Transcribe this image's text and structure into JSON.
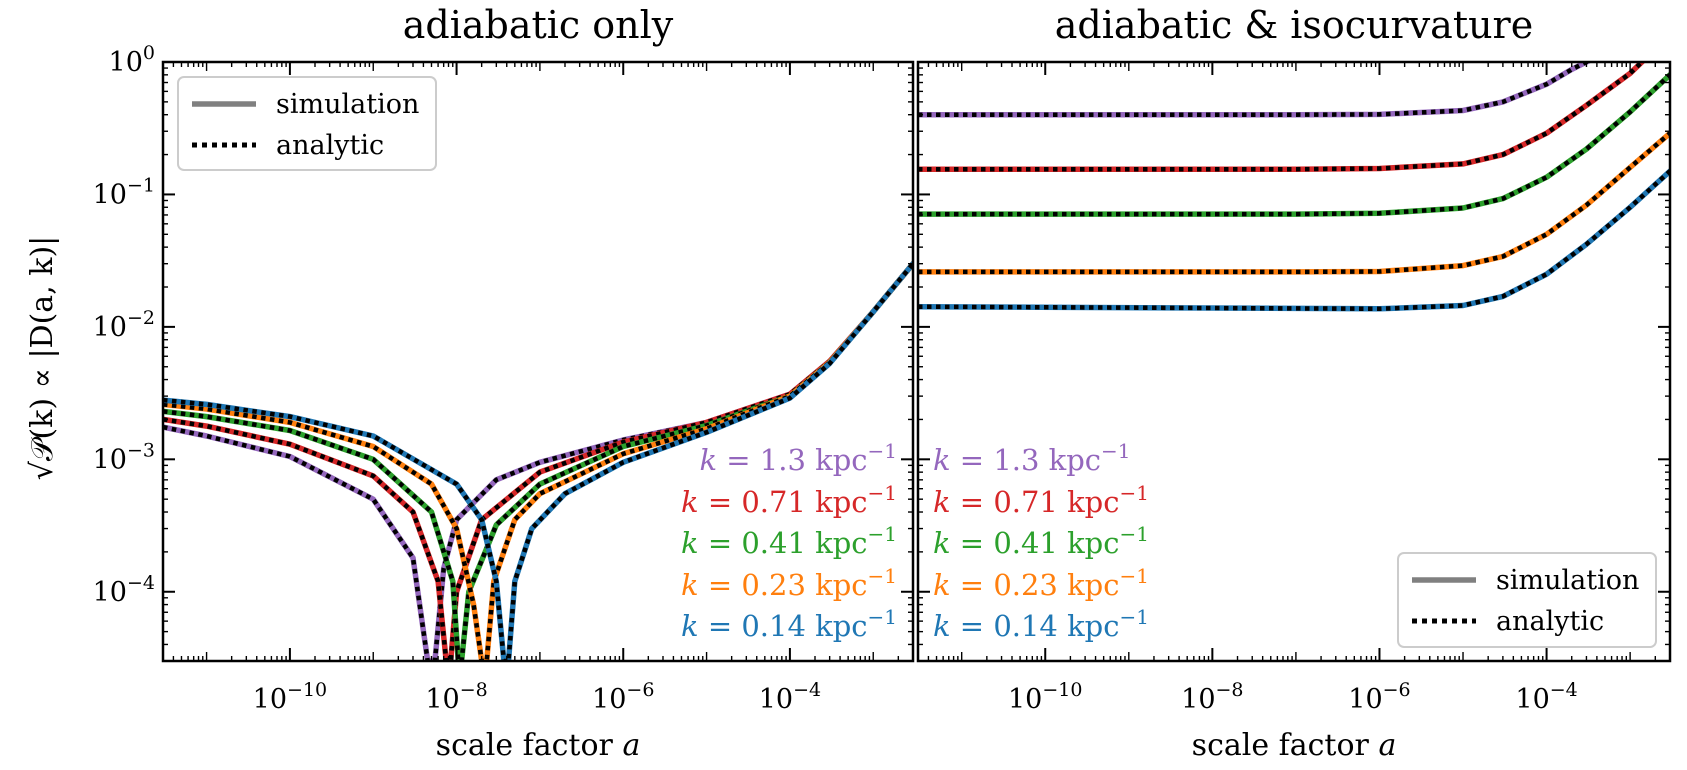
{
  "chart_data": {
    "type": "line",
    "ylabel": "√𝒫(k) ∝ |D(a, k)|",
    "xlabel_prefix": "scale factor ",
    "xlabel_var": "a",
    "xscale": "log",
    "yscale": "log",
    "xlim": [
      3e-12,
      0.003
    ],
    "ylim": [
      3e-05,
      1
    ],
    "x_ticks": [
      {
        "value": 1e-10,
        "base": "10",
        "exp": "−10"
      },
      {
        "value": 1e-08,
        "base": "10",
        "exp": "−8"
      },
      {
        "value": 1e-06,
        "base": "10",
        "exp": "−6"
      },
      {
        "value": 0.0001,
        "base": "10",
        "exp": "−4"
      }
    ],
    "y_ticks": [
      {
        "value": 1,
        "base": "10",
        "exp": "0"
      },
      {
        "value": 0.1,
        "base": "10",
        "exp": "−1"
      },
      {
        "value": 0.01,
        "base": "10",
        "exp": "−2"
      },
      {
        "value": 0.001,
        "base": "10",
        "exp": "−3"
      },
      {
        "value": 0.0001,
        "base": "10",
        "exp": "−4"
      }
    ],
    "legend_entries": [
      "simulation",
      "analytic"
    ],
    "series_meta": [
      {
        "name": "k = 1.3 kpc⁻¹",
        "k_value": "1.3",
        "color": "#9467bd"
      },
      {
        "name": "k = 0.71 kpc⁻¹",
        "k_value": "0.71",
        "color": "#d62728"
      },
      {
        "name": "k = 0.41 kpc⁻¹",
        "k_value": "0.41",
        "color": "#2ca02c"
      },
      {
        "name": "k = 0.23 kpc⁻¹",
        "k_value": "0.23",
        "color": "#ff7f0e"
      },
      {
        "name": "k = 0.14 kpc⁻¹",
        "k_value": "0.14",
        "color": "#1f77b4"
      }
    ],
    "k_unit": "kpc",
    "k_unit_exp": "−1",
    "panels": [
      {
        "title": "adiabatic only",
        "legend_location": "upper left",
        "series": [
          {
            "k": "1.3",
            "points": [
              [
                3e-12,
                0.00175
              ],
              [
                1e-11,
                0.0015
              ],
              [
                1e-10,
                0.00105
              ],
              [
                1e-09,
                0.0005
              ],
              [
                3e-09,
                0.00018
              ],
              [
                4.5e-09,
                3e-05
              ],
              [
                5.5e-09,
                3e-05
              ],
              [
                7e-09,
                0.00015
              ],
              [
                1e-08,
                0.00035
              ],
              [
                3e-08,
                0.0007
              ],
              [
                1e-07,
                0.00095
              ],
              [
                1e-06,
                0.0014
              ],
              [
                1e-05,
                0.0019
              ],
              [
                0.0001,
                0.0031
              ],
              [
                0.0003,
                0.0055
              ],
              [
                0.001,
                0.013
              ],
              [
                0.003,
                0.03
              ]
            ]
          },
          {
            "k": "0.71",
            "points": [
              [
                3e-12,
                0.002
              ],
              [
                1e-11,
                0.00178
              ],
              [
                1e-10,
                0.0013
              ],
              [
                1e-09,
                0.00075
              ],
              [
                3e-09,
                0.0004
              ],
              [
                6e-09,
                0.00012
              ],
              [
                7.5e-09,
                3e-05
              ],
              [
                8.5e-09,
                3e-05
              ],
              [
                1e-08,
                0.0001
              ],
              [
                2e-08,
                0.00035
              ],
              [
                1e-07,
                0.0008
              ],
              [
                1e-06,
                0.00135
              ],
              [
                1e-05,
                0.0019
              ],
              [
                0.0001,
                0.0031
              ],
              [
                0.0003,
                0.0055
              ],
              [
                0.001,
                0.013
              ],
              [
                0.003,
                0.03
              ]
            ]
          },
          {
            "k": "0.41",
            "points": [
              [
                3e-12,
                0.0023
              ],
              [
                1e-11,
                0.0021
              ],
              [
                1e-10,
                0.00165
              ],
              [
                1e-09,
                0.001
              ],
              [
                5e-09,
                0.0004
              ],
              [
                9e-09,
                0.00012
              ],
              [
                1.05e-08,
                3e-05
              ],
              [
                1.15e-08,
                3e-05
              ],
              [
                1.4e-08,
                0.0001
              ],
              [
                3e-08,
                0.00032
              ],
              [
                1e-07,
                0.00065
              ],
              [
                1e-06,
                0.00125
              ],
              [
                1e-05,
                0.0018
              ],
              [
                0.0001,
                0.003
              ],
              [
                0.0003,
                0.0054
              ],
              [
                0.001,
                0.013
              ],
              [
                0.003,
                0.03
              ]
            ]
          },
          {
            "k": "0.23",
            "points": [
              [
                3e-12,
                0.0026
              ],
              [
                1e-11,
                0.0024
              ],
              [
                1e-10,
                0.0019
              ],
              [
                1e-09,
                0.00125
              ],
              [
                5e-09,
                0.00065
              ],
              [
                1e-08,
                0.0003
              ],
              [
                1.6e-08,
                8e-05
              ],
              [
                2e-08,
                3e-05
              ],
              [
                2.3e-08,
                3e-05
              ],
              [
                2.8e-08,
                0.00012
              ],
              [
                5e-08,
                0.00035
              ],
              [
                1e-07,
                0.00055
              ],
              [
                1e-06,
                0.0011
              ],
              [
                1e-05,
                0.0017
              ],
              [
                0.0001,
                0.003
              ],
              [
                0.0003,
                0.0054
              ],
              [
                0.001,
                0.013
              ],
              [
                0.003,
                0.03
              ]
            ]
          },
          {
            "k": "0.14",
            "points": [
              [
                3e-12,
                0.0028
              ],
              [
                1e-11,
                0.0026
              ],
              [
                1e-10,
                0.0021
              ],
              [
                1e-09,
                0.0015
              ],
              [
                1e-08,
                0.00065
              ],
              [
                2e-08,
                0.00035
              ],
              [
                3e-08,
                0.00012
              ],
              [
                3.7e-08,
                3e-05
              ],
              [
                4.2e-08,
                3e-05
              ],
              [
                5e-08,
                0.00012
              ],
              [
                8e-08,
                0.0003
              ],
              [
                2e-07,
                0.00055
              ],
              [
                1e-06,
                0.00095
              ],
              [
                1e-05,
                0.0016
              ],
              [
                0.0001,
                0.0029
              ],
              [
                0.0003,
                0.0053
              ],
              [
                0.001,
                0.013
              ],
              [
                0.003,
                0.03
              ]
            ]
          }
        ]
      },
      {
        "title": "adiabatic & isocurvature",
        "legend_location": "lower right",
        "series": [
          {
            "k": "1.3",
            "points": [
              [
                3e-12,
                0.4
              ],
              [
                1e-09,
                0.4
              ],
              [
                1e-07,
                0.4
              ],
              [
                1e-06,
                0.402
              ],
              [
                1e-05,
                0.43
              ],
              [
                3e-05,
                0.5
              ],
              [
                0.0001,
                0.68
              ],
              [
                0.0002,
                0.88
              ],
              [
                0.00035,
                1.05
              ]
            ]
          },
          {
            "k": "0.71",
            "points": [
              [
                3e-12,
                0.155
              ],
              [
                1e-07,
                0.155
              ],
              [
                1e-06,
                0.157
              ],
              [
                1e-05,
                0.17
              ],
              [
                3e-05,
                0.2
              ],
              [
                0.0001,
                0.29
              ],
              [
                0.0003,
                0.47
              ],
              [
                0.001,
                0.82
              ],
              [
                0.0015,
                1.05
              ]
            ]
          },
          {
            "k": "0.41",
            "points": [
              [
                3e-12,
                0.071
              ],
              [
                1e-07,
                0.071
              ],
              [
                1e-06,
                0.072
              ],
              [
                1e-05,
                0.079
              ],
              [
                3e-05,
                0.093
              ],
              [
                0.0001,
                0.135
              ],
              [
                0.0003,
                0.22
              ],
              [
                0.001,
                0.42
              ],
              [
                0.003,
                0.8
              ]
            ]
          },
          {
            "k": "0.23",
            "points": [
              [
                3e-12,
                0.026
              ],
              [
                1e-07,
                0.026
              ],
              [
                1e-06,
                0.0262
              ],
              [
                1e-05,
                0.029
              ],
              [
                3e-05,
                0.034
              ],
              [
                0.0001,
                0.05
              ],
              [
                0.0003,
                0.083
              ],
              [
                0.001,
                0.16
              ],
              [
                0.003,
                0.29
              ]
            ]
          },
          {
            "k": "0.14",
            "points": [
              [
                3e-12,
                0.0142
              ],
              [
                1e-07,
                0.0138
              ],
              [
                1e-06,
                0.0137
              ],
              [
                1e-05,
                0.0145
              ],
              [
                3e-05,
                0.017
              ],
              [
                0.0001,
                0.025
              ],
              [
                0.0003,
                0.042
              ],
              [
                0.001,
                0.08
              ],
              [
                0.003,
                0.15
              ]
            ]
          }
        ]
      }
    ]
  }
}
